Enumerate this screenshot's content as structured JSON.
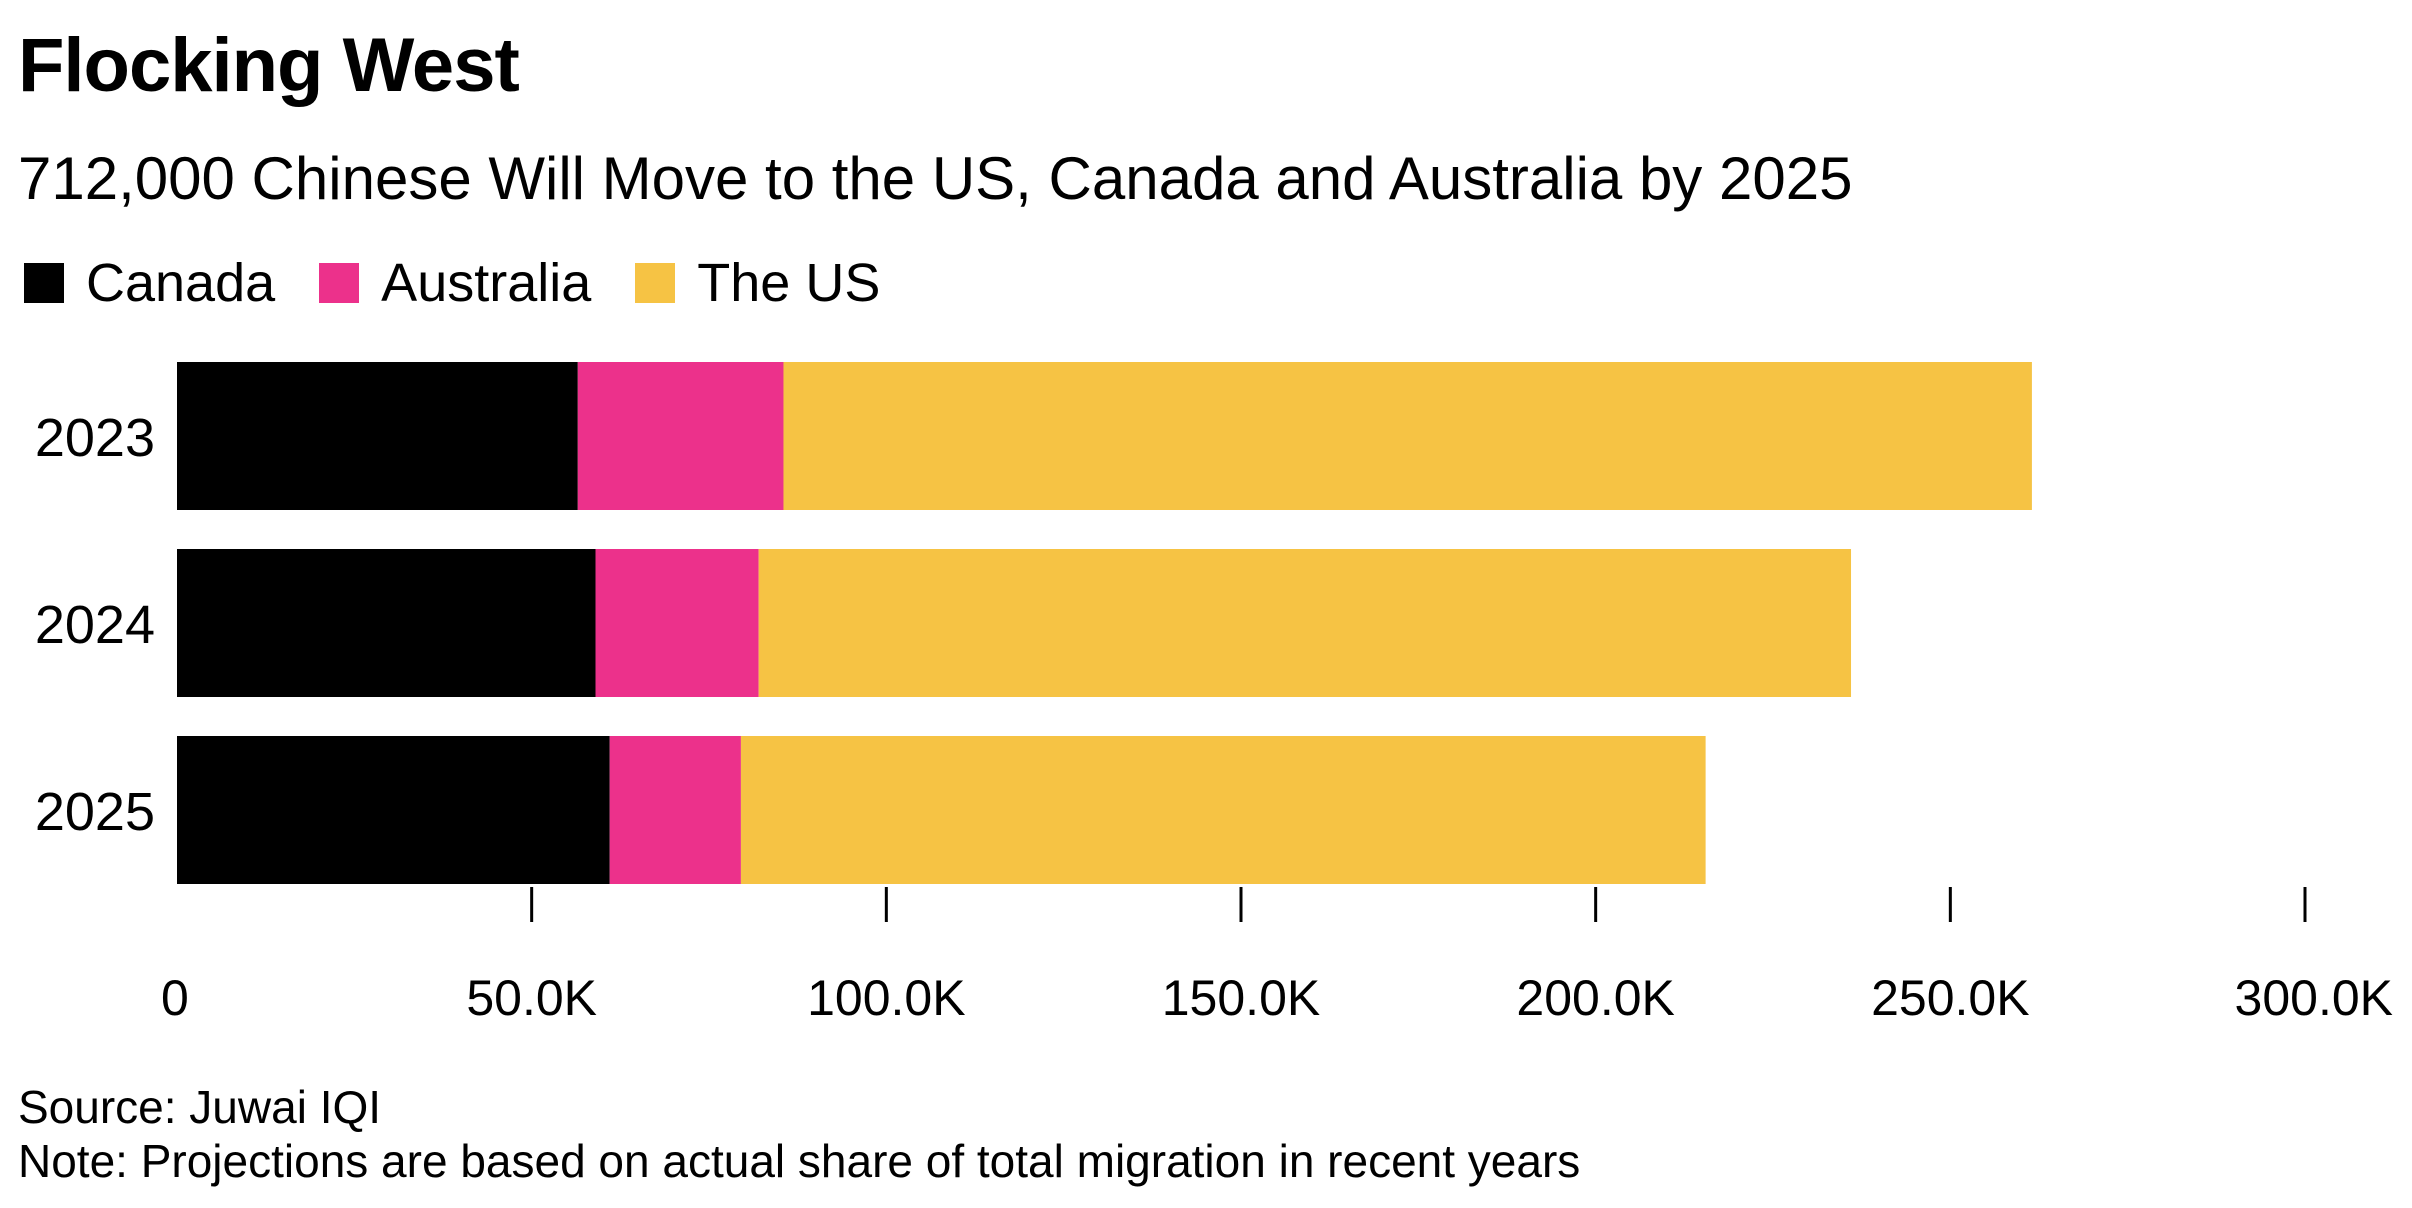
{
  "title": "Flocking West",
  "subtitle": "712,000 Chinese Will Move to the US, Canada and Australia by 2025",
  "source": "Source: Juwai IQI",
  "note": "Note: Projections are based on actual share of total migration in recent years",
  "chart_data": {
    "type": "bar",
    "orientation": "horizontal",
    "stacked": true,
    "categories": [
      "2023",
      "2024",
      "2025"
    ],
    "series": [
      {
        "name": "Canada",
        "color": "#000000",
        "values": [
          56500,
          59000,
          61000
        ]
      },
      {
        "name": "Australia",
        "color": "#ec318b",
        "values": [
          29000,
          23000,
          18500
        ]
      },
      {
        "name": "The US",
        "color": "#f6c344",
        "values": [
          176000,
          154000,
          136000
        ]
      }
    ],
    "xlim": [
      0,
      300000
    ],
    "xticks": [
      0,
      50000,
      100000,
      150000,
      200000,
      250000,
      300000
    ],
    "xtick_labels": [
      "0",
      "50.0K",
      "100.0K",
      "150.0K",
      "200.0K",
      "250.0K",
      "300.0K"
    ],
    "legend_position": "top-left",
    "grid": false
  }
}
